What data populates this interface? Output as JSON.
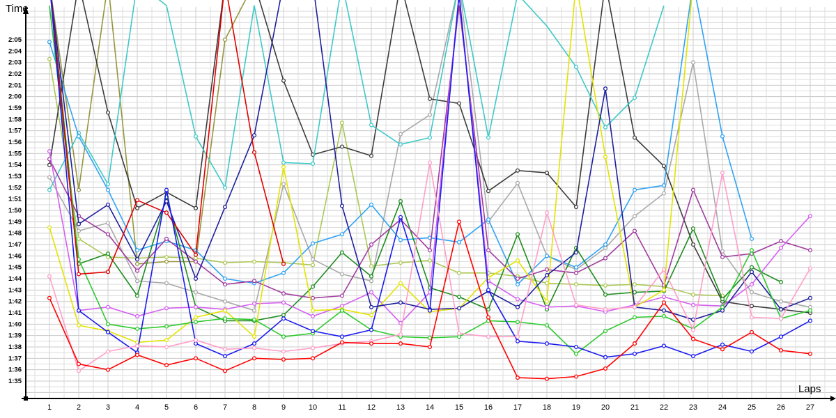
{
  "chart_data": {
    "type": "line",
    "title": "",
    "ylabel": "Time",
    "xlabel": "Laps",
    "x": [
      1,
      2,
      3,
      4,
      5,
      6,
      7,
      8,
      9,
      10,
      11,
      12,
      13,
      14,
      15,
      16,
      17,
      18,
      19,
      20,
      21,
      22,
      23,
      24,
      25,
      26,
      27
    ],
    "x_tick_labels": [
      "1",
      "2",
      "3",
      "4",
      "5",
      "6",
      "7",
      "8",
      "9",
      "10",
      "11",
      "12",
      "13",
      "14",
      "15",
      "16",
      "17",
      "18",
      "19",
      "20",
      "21",
      "22",
      "23",
      "24",
      "25",
      "26",
      "27"
    ],
    "y_tick_labels": [
      "1:35",
      "1:36",
      "1:37",
      "1:38",
      "1:39",
      "1:40",
      "1:41",
      "1:42",
      "1:43",
      "1:44",
      "1:45",
      "1:46",
      "1:47",
      "1:48",
      "1:49",
      "1:50",
      "1:51",
      "1:52",
      "1:53",
      "1:54",
      "1:55",
      "1:56",
      "1:57",
      "1:58",
      "1:59",
      "2:00",
      "2:01",
      "2:02",
      "2:03",
      "2:04",
      "2:05"
    ],
    "y_range_seconds": [
      95,
      125
    ],
    "units": "lap time in seconds (95 = 1:35, 125 = 2:05); values >= 126 run off the top of the chart (pit laps); null = no data / retired",
    "grid": "on, half-second horizontal and half-lap vertical light-gray gridlines",
    "legend": "none",
    "marker": "open circle",
    "series": [
      {
        "name": "khaki",
        "color": "#96963C",
        "values": [
          130,
          111.8,
          130,
          105.3,
          105.5,
          105.5,
          125.0,
          130,
          null,
          null,
          null,
          null,
          null,
          null,
          null,
          null,
          null,
          null,
          null,
          null,
          null,
          null,
          null,
          null,
          null,
          null,
          null
        ]
      },
      {
        "name": "yellowgreen",
        "color": "#ABC855",
        "values": [
          123.3,
          107.5,
          105.9,
          105.8,
          105.9,
          105.8,
          105.4,
          105.5,
          105.4,
          105.2,
          117.7,
          105.1,
          105.4,
          105.6,
          104.5,
          104.5,
          104.2,
          103.6,
          103.5,
          103.4,
          103.5,
          103.3,
          102.6,
          102.5,
          null,
          null,
          null
        ]
      },
      {
        "name": "gray",
        "color": "#A9A9A9",
        "values": [
          112.9,
          108.2,
          108.9,
          103.8,
          103.6,
          102.8,
          102.0,
          101.2,
          112.3,
          105.7,
          104.4,
          103.8,
          116.7,
          118.4,
          130,
          109.0,
          112.4,
          106.0,
          104.8,
          106.7,
          109.5,
          111.5,
          123.0,
          106.4,
          102.8,
          102.0,
          101.5
        ]
      },
      {
        "name": "black",
        "color": "#3C3C3C",
        "values": [
          114.0,
          130,
          118.6,
          110.2,
          111.6,
          110.2,
          130,
          130,
          121.4,
          114.9,
          115.6,
          114.8,
          130,
          119.8,
          119.4,
          111.7,
          113.5,
          113.3,
          110.3,
          130,
          116.4,
          113.9,
          107.0,
          102.0,
          101.6,
          101.3,
          101.0
        ]
      },
      {
        "name": "cyan",
        "color": "#3FC8C8",
        "values": [
          111.8,
          116.8,
          112.3,
          130,
          128,
          116.5,
          112.0,
          128,
          114.2,
          114.1,
          130,
          117.5,
          115.8,
          116.4,
          130,
          116.4,
          129,
          126.2,
          122.6,
          117.3,
          119.9,
          128,
          null,
          null,
          null,
          null,
          null
        ]
      },
      {
        "name": "dodgerblue",
        "color": "#2FA3F5",
        "values": [
          124.8,
          116.5,
          111.8,
          106.5,
          107.3,
          106.5,
          104.0,
          103.6,
          104.5,
          107.1,
          107.9,
          110.5,
          107.4,
          107.6,
          107.2,
          109.2,
          103.5,
          106.0,
          105.0,
          107.0,
          111.8,
          112.2,
          130,
          116.5,
          107.5,
          null,
          null
        ]
      },
      {
        "name": "forestgreen",
        "color": "#1E8C1E",
        "values": [
          130,
          105.3,
          106.2,
          102.5,
          111.2,
          101.5,
          100.3,
          100.3,
          100.8,
          103.3,
          106.3,
          104.2,
          110.8,
          103.2,
          102.4,
          101.3,
          107.9,
          101.3,
          106.7,
          102.6,
          102.8,
          102.9,
          108.4,
          102.2,
          105.0,
          103.7,
          null
        ]
      },
      {
        "name": "purple",
        "color": "#A03CA0",
        "values": [
          114.5,
          109.5,
          107.9,
          104.7,
          107.5,
          105.5,
          103.5,
          103.8,
          102.7,
          102.3,
          102.5,
          107.0,
          109.2,
          106.5,
          128,
          106.5,
          104.0,
          104.8,
          104.5,
          105.8,
          108.2,
          103.4,
          111.8,
          105.9,
          106.2,
          107.3,
          106.5
        ]
      },
      {
        "name": "orchid",
        "color": "#D45FF0",
        "values": [
          115.2,
          101.2,
          101.5,
          100.7,
          101.4,
          101.5,
          101.3,
          101.8,
          101.9,
          100.7,
          101.6,
          102.8,
          100.1,
          102.8,
          129,
          103.8,
          102.2,
          101.5,
          101.6,
          101.1,
          101.7,
          102.4,
          101.7,
          101.6,
          103.5,
          106.7,
          109.5
        ]
      },
      {
        "name": "yellow",
        "color": "#E3E300",
        "values": [
          108.5,
          99.9,
          99.4,
          98.4,
          98.6,
          100.6,
          101.2,
          98.9,
          113.8,
          101.2,
          101.3,
          100.8,
          103.6,
          101.1,
          101.4,
          104.1,
          105.6,
          102.0,
          130,
          114.7,
          101.5,
          103.0,
          130,
          null,
          null,
          null,
          null
        ]
      },
      {
        "name": "navy",
        "color": "#1F1F9E",
        "values": [
          130,
          108.8,
          110.5,
          105.7,
          110.8,
          104.0,
          110.3,
          116.6,
          130,
          130,
          110.4,
          101.5,
          101.9,
          101.3,
          101.4,
          102.9,
          101.5,
          104.3,
          106.3,
          120.7,
          101.5,
          101.2,
          100.4,
          101.2,
          104.6,
          101.3,
          102.3
        ]
      },
      {
        "name": "green",
        "color": "#2DC92D",
        "values": [
          128,
          105.7,
          100.0,
          99.6,
          99.8,
          100.2,
          100.5,
          100.4,
          98.9,
          99.2,
          101.2,
          99.5,
          98.9,
          98.8,
          98.9,
          100.3,
          100.2,
          99.9,
          97.4,
          99.4,
          100.6,
          100.7,
          99.6,
          101.5,
          106.5,
          100.5,
          101.2
        ]
      },
      {
        "name": "crimson",
        "color": "#E00000",
        "values": [
          130,
          104.4,
          104.6,
          110.9,
          109.8,
          106.1,
          130,
          115.1,
          105.3,
          null,
          null,
          null,
          null,
          null,
          null,
          null,
          null,
          null,
          null,
          null,
          null,
          null,
          null,
          null,
          null,
          null,
          null
        ]
      },
      {
        "name": "blue",
        "color": "#1A1AF0",
        "values": [
          130,
          101.2,
          99.3,
          97.5,
          111.8,
          98.3,
          97.2,
          98.3,
          100.5,
          99.4,
          98.9,
          99.5,
          109.4,
          101.2,
          129,
          103.0,
          98.5,
          98.3,
          98.0,
          97.1,
          97.4,
          98.1,
          97.2,
          98.2,
          97.6,
          98.9,
          100.3
        ]
      },
      {
        "name": "pink",
        "color": "#FF9EC8",
        "values": [
          104.2,
          95.9,
          97.6,
          98.1,
          98.0,
          98.6,
          97.8,
          97.9,
          97.6,
          97.9,
          98.3,
          98.5,
          99.1,
          114.2,
          99.2,
          98.9,
          98.9,
          109.8,
          101.7,
          101.3,
          101.5,
          104.8,
          99.5,
          113.3,
          100.6,
          100.5,
          104.9
        ]
      },
      {
        "name": "red",
        "color": "#FF0000",
        "values": [
          102.3,
          96.5,
          96.0,
          97.3,
          96.4,
          97.0,
          95.9,
          97.0,
          96.9,
          97.0,
          98.4,
          98.3,
          98.3,
          98.0,
          109.0,
          100.6,
          95.3,
          95.2,
          95.4,
          96.1,
          98.3,
          101.9,
          98.7,
          97.8,
          99.3,
          97.7,
          97.4
        ]
      }
    ]
  }
}
